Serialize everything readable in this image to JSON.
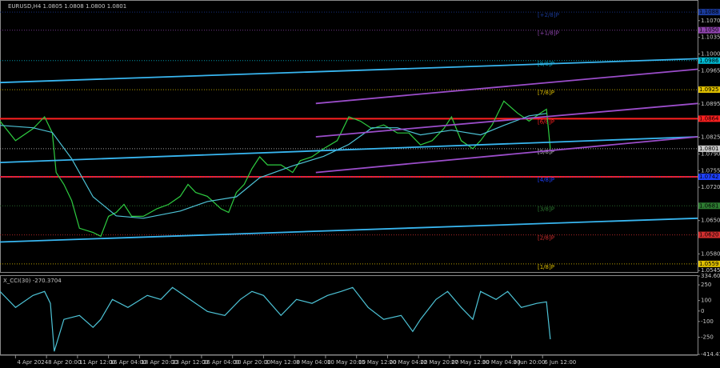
{
  "chart_data": [
    {
      "type": "line",
      "title": "EURUSD,H4 1.0805 1.0808 1.0800 1.0801",
      "xlim": [
        0,
        360
      ],
      "xticks": [
        {
          "value": 8,
          "label": "4 Apr 2024"
        },
        {
          "value": 24,
          "label": "8 Apr 20:00"
        },
        {
          "value": 40,
          "label": "11 Apr 12:00"
        },
        {
          "value": 56,
          "label": "16 Apr 04:00"
        },
        {
          "value": 72,
          "label": "18 Apr 20:00"
        },
        {
          "value": 88,
          "label": "23 Apr 12:00"
        },
        {
          "value": 104,
          "label": "26 Apr 04:00"
        },
        {
          "value": 120,
          "label": "30 Apr 20:00"
        },
        {
          "value": 136,
          "label": "3 May 12:00"
        },
        {
          "value": 152,
          "label": "8 May 04:00"
        },
        {
          "value": 168,
          "label": "10 May 20:00"
        },
        {
          "value": 184,
          "label": "15 May 12:00"
        },
        {
          "value": 200,
          "label": "20 May 04:00"
        },
        {
          "value": 216,
          "label": "22 May 20:00"
        },
        {
          "value": 232,
          "label": "27 May 12:00"
        },
        {
          "value": 248,
          "label": "30 May 04:00"
        },
        {
          "value": 264,
          "label": "3 Jun 20:00"
        },
        {
          "value": 280,
          "label": "6 Jun 12:00"
        }
      ],
      "ylim": [
        1.0542,
        1.111
      ],
      "yticks": [
        {
          "value": 1.107,
          "label": "1.1070"
        },
        1.1035,
        {
          "value": 1.1,
          "label": "1.1000"
        },
        1.0965,
        1.0895,
        1.0825,
        {
          "value": 1.079,
          "label": "1.0790"
        },
        1.0755,
        {
          "value": 1.072,
          "label": "1.0720"
        },
        {
          "value": 1.065,
          "label": "1.0650"
        },
        {
          "value": 1.058,
          "label": "1.0580"
        },
        1.0545
      ],
      "series": [
        {
          "color": "#2ecc40",
          "x": [
            0,
            8,
            17,
            23,
            27,
            29,
            33,
            37,
            41,
            48,
            52,
            56,
            60,
            64,
            68,
            74,
            81,
            87,
            93,
            97,
            101,
            107,
            114,
            118,
            122,
            126,
            130,
            134,
            138,
            145,
            151,
            155,
            161,
            167,
            174,
            180,
            186,
            192,
            198,
            205,
            211,
            217,
            223,
            229,
            233,
            238,
            244,
            248,
            254,
            260,
            267,
            273,
            279,
            282,
            284
          ],
          "values": [
            1.0859,
            1.0818,
            1.0843,
            1.0868,
            1.0834,
            1.0751,
            1.0726,
            1.0692,
            1.0634,
            1.0625,
            1.0617,
            1.0659,
            1.0667,
            1.0684,
            1.0659,
            1.0659,
            1.0675,
            1.0684,
            1.0701,
            1.0726,
            1.0709,
            1.0701,
            1.0675,
            1.0667,
            1.0709,
            1.0726,
            1.0759,
            1.0784,
            1.0767,
            1.0767,
            1.0751,
            1.0776,
            1.0784,
            1.0801,
            1.0818,
            1.0868,
            1.0859,
            1.0843,
            1.0851,
            1.0834,
            1.0834,
            1.0809,
            1.0818,
            1.0843,
            1.0868,
            1.0818,
            1.0801,
            1.0818,
            1.0851,
            1.0901,
            1.0876,
            1.0859,
            1.0876,
            1.0884,
            1.0801
          ]
        },
        {
          "color": "#4dc3d6",
          "x": [
            0,
            17,
            27,
            37,
            48,
            60,
            74,
            93,
            107,
            122,
            134,
            151,
            167,
            180,
            192,
            205,
            217,
            233,
            248,
            260,
            273,
            282
          ],
          "values": [
            1.085,
            1.0845,
            1.0835,
            1.078,
            1.07,
            1.066,
            1.0655,
            1.067,
            1.069,
            1.07,
            1.074,
            1.0765,
            1.0785,
            1.081,
            1.0845,
            1.0845,
            1.083,
            1.084,
            1.083,
            1.085,
            1.087,
            1.0875
          ]
        },
        {
          "color": "#38b6f0",
          "x": [
            0,
            360
          ],
          "values": [
            1.094,
            1.099
          ]
        },
        {
          "color": "#38b6f0",
          "x": [
            0,
            360
          ],
          "values": [
            1.0772,
            1.0826
          ]
        },
        {
          "color": "#38b6f0",
          "x": [
            0,
            360
          ],
          "values": [
            1.0605,
            1.0655
          ]
        },
        {
          "color": "#9b4dca",
          "x": [
            163,
            360
          ],
          "values": [
            1.0896,
            1.0968
          ]
        },
        {
          "color": "#9b4dca",
          "x": [
            163,
            360
          ],
          "values": [
            1.0826,
            1.0896
          ]
        },
        {
          "color": "#9b4dca",
          "x": [
            163,
            360
          ],
          "values": [
            1.0751,
            1.0826
          ]
        }
      ],
      "hlines": [
        {
          "value": 1.0864,
          "color": "#ff2020"
        },
        {
          "value": 1.0742,
          "color": "#ff2020"
        }
      ],
      "levels": [
        {
          "value": 1.1088,
          "label": "1.1088",
          "murray": "[+2/8]P",
          "color": "#1a3a9a"
        },
        {
          "value": 1.105,
          "label": "1.1050",
          "murray": "[+1/8]P",
          "color": "#8e44ad"
        },
        {
          "value": 1.0986,
          "label": "1.0986",
          "murray": "[8/8]P",
          "color": "#00bcd4"
        },
        {
          "value": 1.0925,
          "label": "1.0925",
          "murray": "[7/8]P",
          "color": "#e0c000"
        },
        {
          "value": 1.0864,
          "label": "1.0864",
          "murray": "[6/8]P",
          "color": "#ff2020"
        },
        {
          "value": 1.0801,
          "label": "1.0801",
          "murray": "[5/8]P",
          "color": "#c8c8c8"
        },
        {
          "value": 1.0742,
          "label": "1.0742",
          "murray": "[4/8]P",
          "color": "#1e40ff"
        },
        {
          "value": 1.0681,
          "label": "1.0681",
          "murray": "[3/8]P",
          "color": "#2e7d32"
        },
        {
          "value": 1.062,
          "label": "1.0620",
          "murray": "[2/8]P",
          "color": "#d32f2f"
        },
        {
          "value": 1.0559,
          "label": "1.0559",
          "murray": "[1/8]P",
          "color": "#e0c000"
        }
      ]
    },
    {
      "type": "line",
      "title": "X_CCI(30) -270.3704",
      "xlim": [
        0,
        360
      ],
      "ylim": [
        -414.4185,
        334.6005
      ],
      "yticks": [
        334.6005,
        250,
        100,
        0,
        -100,
        -250,
        -414.4185
      ],
      "series": [
        {
          "color": "#4dc3d6",
          "x": [
            0,
            8,
            17,
            23,
            26,
            28,
            33,
            41,
            48,
            52,
            58,
            66,
            76,
            83,
            89,
            95,
            101,
            107,
            116,
            124,
            130,
            136,
            145,
            153,
            161,
            169,
            176,
            182,
            190,
            198,
            207,
            213,
            217,
            225,
            231,
            238,
            244,
            248,
            256,
            262,
            269,
            277,
            282,
            284
          ],
          "values": [
            187,
            34,
            149,
            187,
            73,
            -385,
            -80,
            -42,
            -156,
            -80,
            111,
            34,
            149,
            111,
            225,
            149,
            73,
            -4,
            -42,
            111,
            187,
            149,
            -42,
            111,
            73,
            149,
            187,
            225,
            34,
            -80,
            -42,
            -195,
            -80,
            111,
            187,
            34,
            -80,
            187,
            111,
            187,
            34,
            73,
            88,
            -270
          ]
        }
      ]
    }
  ]
}
